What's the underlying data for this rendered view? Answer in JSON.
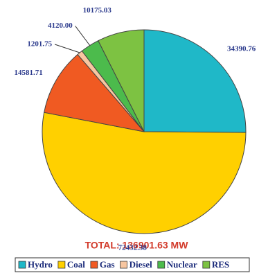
{
  "chart_data": {
    "type": "pie",
    "total_label": "TOTAL: 136901.63 MW",
    "categories": [
      "Hydro",
      "Coal",
      "Gas",
      "Diesel",
      "Nuclear",
      "RES"
    ],
    "values": [
      34390.76,
      72432.38,
      14581.71,
      1201.75,
      4120.0,
      10175.03
    ],
    "value_labels": [
      "34390.76",
      "72432.38",
      "14581.71",
      "1201.75",
      "4120.00",
      "10175.03"
    ],
    "colors": [
      "#1fb8c8",
      "#ffd000",
      "#f05a22",
      "#f7c6a0",
      "#4cbb4c",
      "#7dc242"
    ],
    "legend": "bottom"
  }
}
